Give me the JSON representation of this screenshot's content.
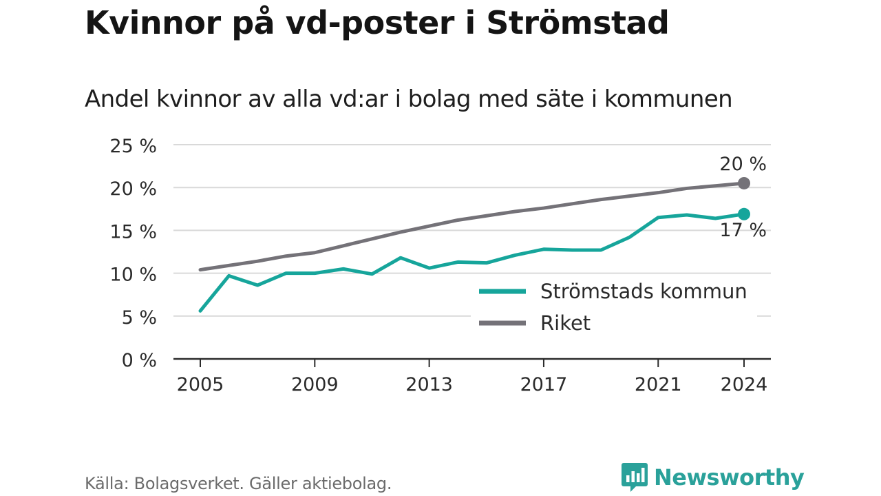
{
  "title": "Kvinnor på vd-poster i Strömstad",
  "subtitle": "Andel kvinnor av alla vd:ar i bolag med säte i kommunen",
  "source": "Källa: Bolagsverket. Gäller aktiebolag.",
  "brand": "Newsworthy",
  "colors": {
    "stromstad": "#16a59b",
    "riket": "#747278",
    "grid": "#d9d9d9",
    "axis": "#2b2b2b",
    "brand": "#2aa19a"
  },
  "chart_data": {
    "type": "line",
    "x": [
      2005,
      2006,
      2007,
      2008,
      2009,
      2010,
      2011,
      2012,
      2013,
      2014,
      2015,
      2016,
      2017,
      2018,
      2019,
      2020,
      2021,
      2022,
      2023,
      2024
    ],
    "series": [
      {
        "name": "Strömstads kommun",
        "values": [
          5.6,
          9.7,
          8.6,
          10.0,
          10.0,
          10.5,
          9.9,
          11.8,
          10.6,
          11.3,
          11.2,
          12.1,
          12.8,
          12.7,
          12.7,
          14.2,
          16.5,
          16.8,
          16.4,
          16.9
        ],
        "end_label": "17 %"
      },
      {
        "name": "Riket",
        "values": [
          10.4,
          10.9,
          11.4,
          12.0,
          12.4,
          13.2,
          14.0,
          14.8,
          15.5,
          16.2,
          16.7,
          17.2,
          17.6,
          18.1,
          18.6,
          19.0,
          19.4,
          19.9,
          20.2,
          20.5
        ],
        "end_label": "20 %"
      }
    ],
    "ylim": [
      0,
      25
    ],
    "yticks": [
      0,
      5,
      10,
      15,
      20,
      25
    ],
    "ytick_labels": [
      "0 %",
      "5 %",
      "10 %",
      "15 %",
      "20 %",
      "25 %"
    ],
    "xticks": [
      2005,
      2009,
      2013,
      2017,
      2021,
      2024
    ],
    "xtick_labels": [
      "2005",
      "2009",
      "2013",
      "2017",
      "2021",
      "2024"
    ],
    "grid": true,
    "legend": "bottom-right",
    "xlabel": "",
    "ylabel": ""
  }
}
